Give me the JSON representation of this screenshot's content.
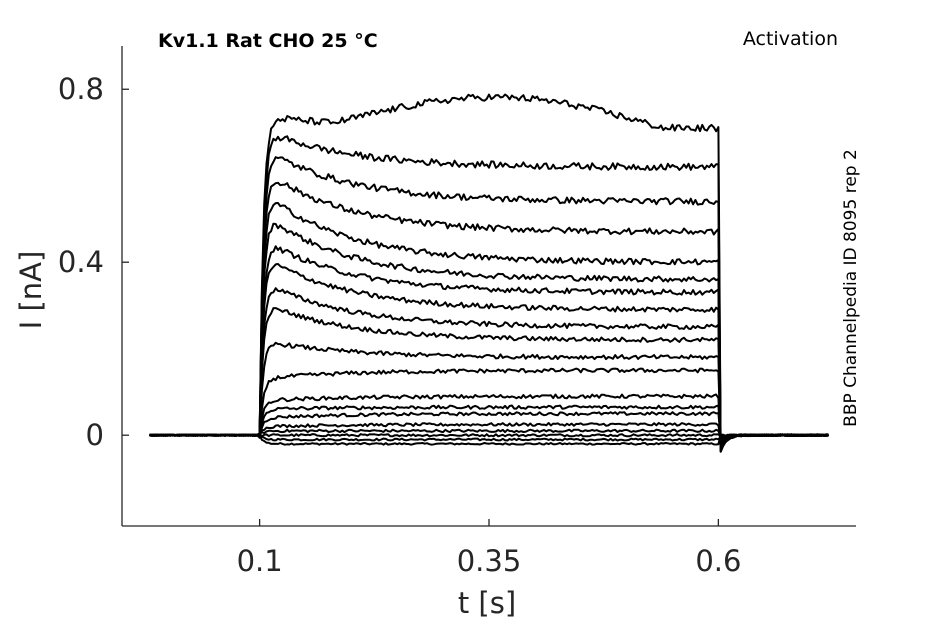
{
  "chart_data": {
    "type": "line",
    "title": "Kv1.1  Rat  CHO  25 °C",
    "protocol_label": "Activation",
    "side_label": "BBP Channelpedia ID 8095 rep 2",
    "xlabel": "t [s]",
    "ylabel": "I [nA]",
    "xlim": [
      -0.05,
      0.75
    ],
    "ylim": [
      -0.21,
      0.9
    ],
    "xticks": [
      0.1,
      0.35,
      0.6
    ],
    "xtick_labels": [
      "0.1",
      "0.35",
      "0.6"
    ],
    "yticks": [
      0,
      0.4,
      0.8
    ],
    "ytick_labels": [
      "0",
      "0.4",
      "0.8"
    ],
    "grid": false,
    "pulse": {
      "start": 0.1,
      "end": 0.6
    },
    "series": [
      {
        "peak": -0.02,
        "steady": -0.02
      },
      {
        "peak": -0.01,
        "steady": -0.01
      },
      {
        "peak": 0.0,
        "steady": 0.0
      },
      {
        "peak": 0.01,
        "steady": 0.01
      },
      {
        "peak": 0.02,
        "steady": 0.025
      },
      {
        "peak": 0.04,
        "steady": 0.05
      },
      {
        "peak": 0.06,
        "steady": 0.065
      },
      {
        "peak": 0.08,
        "steady": 0.09
      },
      {
        "peak": 0.13,
        "steady": 0.15
      },
      {
        "peak": 0.22,
        "steady": 0.18
      },
      {
        "peak": 0.31,
        "steady": 0.22
      },
      {
        "peak": 0.36,
        "steady": 0.25
      },
      {
        "peak": 0.42,
        "steady": 0.29
      },
      {
        "peak": 0.46,
        "steady": 0.33
      },
      {
        "peak": 0.52,
        "steady": 0.36
      },
      {
        "peak": 0.57,
        "steady": 0.4
      },
      {
        "peak": 0.62,
        "steady": 0.47
      },
      {
        "peak": 0.67,
        "steady": 0.54
      },
      {
        "peak": 0.71,
        "steady": 0.62
      },
      {
        "peak": 0.74,
        "steady": 0.71
      }
    ]
  }
}
